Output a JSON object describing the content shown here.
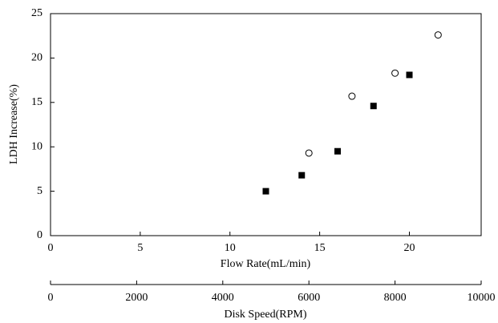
{
  "chart_data": {
    "type": "scatter",
    "xlabel": "Flow Rate(mL/min)",
    "ylabel": "LDH Increase(%)",
    "x2label": "Disk Speed(RPM)",
    "xlim": [
      0,
      24
    ],
    "xticks": [
      0,
      5,
      10,
      15,
      20
    ],
    "x2lim": [
      0,
      10000
    ],
    "x2ticks": [
      0,
      2000,
      4000,
      6000,
      8000,
      10000
    ],
    "ylim": [
      0,
      25
    ],
    "yticks": [
      0,
      5,
      10,
      15,
      20,
      25
    ],
    "series": [
      {
        "marker": "square",
        "color": "#000000",
        "x": [
          12,
          14,
          16,
          18,
          20
        ],
        "values": [
          5,
          6.8,
          9.5,
          14.6,
          18.1
        ]
      },
      {
        "marker": "circle",
        "color": "#000000",
        "axis": "x2",
        "x": [
          6000,
          7000,
          8000,
          9000
        ],
        "values": [
          9.3,
          15.7,
          18.3,
          22.6
        ]
      }
    ]
  }
}
